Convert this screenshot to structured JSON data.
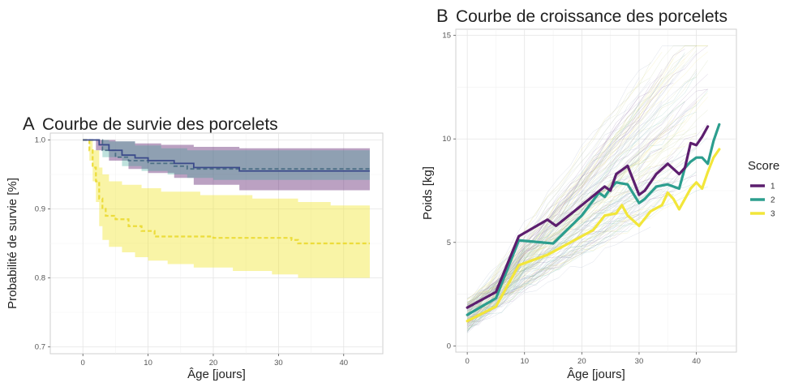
{
  "colors": {
    "score1": "#5c1e6e",
    "score2": "#2c9e8e",
    "score3": "#f2e63a"
  },
  "chart_data": [
    {
      "panel_letter": "A",
      "type": "line",
      "title": "Courbe de survie des porcelets",
      "xlabel": "Âge [jours]",
      "ylabel": "Probabilité de survie [%]",
      "xlim": [
        -5,
        46
      ],
      "ylim": [
        0.69,
        1.01
      ],
      "xticks": [
        0,
        10,
        20,
        30,
        40
      ],
      "yticks": [
        0.7,
        0.8,
        0.9,
        1.0
      ],
      "ytick_labels": [
        "0.7",
        "0.8",
        "0.9",
        "1.0"
      ],
      "grid": true,
      "series": [
        {
          "color": "score1",
          "style": "solid",
          "steps": [
            [
              0,
              1.0
            ],
            [
              1.5,
              1.0
            ],
            [
              2.5,
              0.993
            ],
            [
              4,
              0.985
            ],
            [
              6,
              0.978
            ],
            [
              8,
              0.974
            ],
            [
              10,
              0.97
            ],
            [
              14,
              0.966
            ],
            [
              17,
              0.96
            ],
            [
              24,
              0.955
            ],
            [
              44,
              0.955
            ]
          ],
          "band_upper": [
            [
              0,
              1.0
            ],
            [
              3,
              1.0
            ],
            [
              5,
              0.998
            ],
            [
              8,
              0.995
            ],
            [
              12,
              0.993
            ],
            [
              17,
              0.99
            ],
            [
              24,
              0.988
            ],
            [
              44,
              0.988
            ]
          ],
          "band_lower": [
            [
              0,
              1.0
            ],
            [
              2,
              0.985
            ],
            [
              4,
              0.97
            ],
            [
              7,
              0.958
            ],
            [
              10,
              0.952
            ],
            [
              14,
              0.945
            ],
            [
              17,
              0.935
            ],
            [
              24,
              0.927
            ],
            [
              44,
              0.927
            ]
          ]
        },
        {
          "color": "score2",
          "style": "dashed",
          "steps": [
            [
              0,
              1.0
            ],
            [
              2,
              1.0
            ],
            [
              3,
              0.985
            ],
            [
              5,
              0.975
            ],
            [
              7,
              0.97
            ],
            [
              10,
              0.966
            ],
            [
              14,
              0.962
            ],
            [
              16,
              0.958
            ],
            [
              44,
              0.958
            ]
          ],
          "band_upper": [
            [
              0,
              1.0
            ],
            [
              4,
              0.998
            ],
            [
              8,
              0.992
            ],
            [
              12,
              0.988
            ],
            [
              16,
              0.985
            ],
            [
              44,
              0.985
            ]
          ],
          "band_lower": [
            [
              0,
              1.0
            ],
            [
              3,
              0.975
            ],
            [
              6,
              0.962
            ],
            [
              9,
              0.955
            ],
            [
              13,
              0.95
            ],
            [
              16,
              0.945
            ],
            [
              20,
              0.942
            ],
            [
              44,
              0.942
            ]
          ]
        },
        {
          "color": "score3",
          "style": "dashed",
          "steps": [
            [
              0,
              1.0
            ],
            [
              1,
              0.985
            ],
            [
              1.5,
              0.96
            ],
            [
              2,
              0.94
            ],
            [
              2.5,
              0.915
            ],
            [
              3,
              0.9
            ],
            [
              3.5,
              0.89
            ],
            [
              5,
              0.885
            ],
            [
              7,
              0.875
            ],
            [
              9,
              0.868
            ],
            [
              11,
              0.86
            ],
            [
              16,
              0.86
            ],
            [
              20,
              0.858
            ],
            [
              32,
              0.855
            ],
            [
              33,
              0.85
            ],
            [
              44,
              0.85
            ]
          ],
          "band_upper": [
            [
              0,
              1.0
            ],
            [
              1.5,
              0.985
            ],
            [
              2.5,
              0.96
            ],
            [
              3,
              0.95
            ],
            [
              4,
              0.94
            ],
            [
              6,
              0.935
            ],
            [
              9,
              0.93
            ],
            [
              12,
              0.925
            ],
            [
              18,
              0.92
            ],
            [
              26,
              0.915
            ],
            [
              33,
              0.91
            ],
            [
              38,
              0.905
            ],
            [
              44,
              0.905
            ]
          ],
          "band_lower": [
            [
              0,
              1.0
            ],
            [
              1,
              0.97
            ],
            [
              1.5,
              0.94
            ],
            [
              2,
              0.91
            ],
            [
              2.5,
              0.875
            ],
            [
              3,
              0.855
            ],
            [
              4,
              0.845
            ],
            [
              6,
              0.837
            ],
            [
              8,
              0.83
            ],
            [
              10,
              0.825
            ],
            [
              13,
              0.82
            ],
            [
              17,
              0.815
            ],
            [
              23,
              0.81
            ],
            [
              29,
              0.805
            ],
            [
              33,
              0.8
            ],
            [
              44,
              0.8
            ]
          ]
        }
      ]
    },
    {
      "panel_letter": "B",
      "type": "line",
      "title": "Courbe de croissance des porcelets",
      "xlabel": "Âge [jours]",
      "ylabel": "Poids [kg]",
      "xlim": [
        -2,
        47
      ],
      "ylim": [
        -0.3,
        15.3
      ],
      "xticks": [
        0,
        10,
        20,
        30,
        40
      ],
      "yticks": [
        0,
        5,
        10,
        15
      ],
      "grid": true,
      "legend": {
        "title": "Score",
        "labels": [
          "1",
          "2",
          "3"
        ],
        "placement": "right"
      },
      "series": [
        {
          "name": "1",
          "color": "score1",
          "points": [
            [
              0,
              1.85
            ],
            [
              5,
              2.6
            ],
            [
              9,
              5.3
            ],
            [
              14,
              6.1
            ],
            [
              15.5,
              5.8
            ],
            [
              20,
              6.8
            ],
            [
              24,
              7.7
            ],
            [
              25,
              7.5
            ],
            [
              26,
              8.3
            ],
            [
              27,
              8.5
            ],
            [
              28,
              8.7
            ],
            [
              30,
              7.3
            ],
            [
              31,
              7.5
            ],
            [
              33,
              8.3
            ],
            [
              35,
              8.8
            ],
            [
              37,
              8.3
            ],
            [
              38,
              8.6
            ],
            [
              39,
              9.8
            ],
            [
              40,
              9.7
            ],
            [
              41,
              10.1
            ],
            [
              42,
              10.6
            ]
          ]
        },
        {
          "name": "2",
          "color": "score2",
          "points": [
            [
              0,
              1.5
            ],
            [
              5,
              2.3
            ],
            [
              9,
              5.1
            ],
            [
              11,
              5.05
            ],
            [
              15,
              4.95
            ],
            [
              20,
              6.3
            ],
            [
              23,
              7.4
            ],
            [
              24,
              7.2
            ],
            [
              25,
              7.6
            ],
            [
              26,
              7.9
            ],
            [
              28,
              7.8
            ],
            [
              30,
              6.9
            ],
            [
              31,
              7.1
            ],
            [
              33,
              7.7
            ],
            [
              35,
              7.8
            ],
            [
              37,
              7.6
            ],
            [
              38,
              8.6
            ],
            [
              39,
              8.9
            ],
            [
              40,
              9.1
            ],
            [
              41,
              9.1
            ],
            [
              42,
              8.8
            ],
            [
              43,
              9.9
            ],
            [
              44,
              10.7
            ]
          ]
        },
        {
          "name": "3",
          "color": "score3",
          "points": [
            [
              0,
              1.2
            ],
            [
              5,
              1.9
            ],
            [
              9,
              3.9
            ],
            [
              14,
              4.4
            ],
            [
              18,
              5.0
            ],
            [
              22,
              5.6
            ],
            [
              24,
              6.3
            ],
            [
              26,
              6.4
            ],
            [
              27,
              6.8
            ],
            [
              28,
              6.3
            ],
            [
              30,
              5.8
            ],
            [
              32,
              6.5
            ],
            [
              34,
              6.8
            ],
            [
              35,
              7.4
            ],
            [
              36,
              7.1
            ],
            [
              37,
              6.6
            ],
            [
              38,
              7.1
            ],
            [
              39,
              7.6
            ],
            [
              40,
              7.9
            ],
            [
              41,
              7.6
            ],
            [
              42,
              8.4
            ],
            [
              43,
              9.1
            ],
            [
              44,
              9.5
            ]
          ]
        }
      ]
    }
  ]
}
